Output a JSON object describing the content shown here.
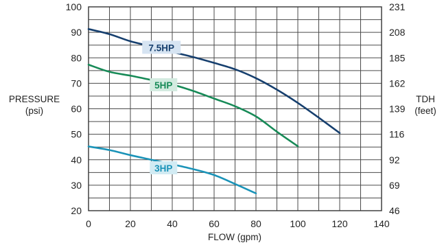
{
  "chart_data": {
    "type": "line",
    "xlabel": "FLOW (gpm)",
    "ylabel_left": [
      "PRESSURE",
      "(psi)"
    ],
    "ylabel_right": [
      "TDH",
      "(feet)"
    ],
    "xlim": [
      0,
      140
    ],
    "ylim": [
      20,
      100
    ],
    "x_ticks": [
      "0",
      "20",
      "40",
      "60",
      "80",
      "100",
      "120",
      "140"
    ],
    "x_tick_values": [
      0,
      20,
      40,
      60,
      80,
      100,
      120,
      140
    ],
    "y_ticks_left": [
      "100",
      "90",
      "80",
      "70",
      "60",
      "50",
      "40",
      "30",
      "20"
    ],
    "y_tick_values_left": [
      100,
      90,
      80,
      70,
      60,
      50,
      40,
      30,
      20
    ],
    "y_ticks_right": [
      "231",
      "208",
      "185",
      "162",
      "139",
      "116",
      "92",
      "69",
      "46"
    ],
    "grid": true,
    "series": [
      {
        "name": "7.5HP",
        "color": "#163f6e",
        "label_bg": "#d6e4f2",
        "x": [
          0,
          10,
          20,
          30,
          40,
          50,
          60,
          70,
          80,
          90,
          100,
          110,
          120
        ],
        "y": [
          91.3,
          89.3,
          86.5,
          84.5,
          82.3,
          80.3,
          78,
          75.5,
          72,
          67.5,
          62.3,
          56.5,
          50.5
        ]
      },
      {
        "name": "5HP",
        "color": "#178a57",
        "label_bg": "#d3ebe0",
        "x": [
          0,
          10,
          20,
          30,
          40,
          50,
          60,
          70,
          80,
          90,
          100
        ],
        "y": [
          77.3,
          74.5,
          73,
          71.3,
          69.5,
          67,
          64,
          61,
          57,
          51,
          45.3
        ]
      },
      {
        "name": "3HP",
        "color": "#1a93b8",
        "label_bg": "#d2ebf3",
        "x": [
          0,
          10,
          20,
          30,
          40,
          50,
          60,
          70,
          80
        ],
        "y": [
          45.2,
          43.8,
          41.8,
          40,
          38.2,
          36.3,
          34,
          30.5,
          26.8
        ]
      }
    ]
  }
}
